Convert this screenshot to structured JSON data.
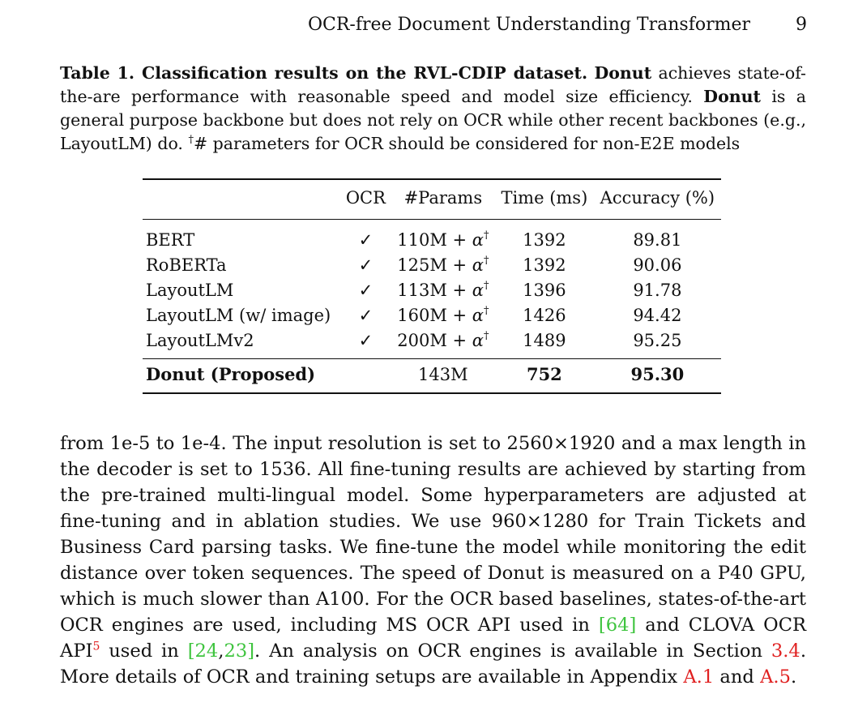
{
  "header": {
    "running_title": "OCR-free Document Understanding Transformer",
    "page_number": "9"
  },
  "caption": {
    "label": "Table 1. Classification results on the RVL-CDIP dataset.",
    "bold_name_1": "Donut",
    "text_1": "achieves state-of-the-are performance with reasonable speed and model size efficiency.",
    "bold_name_2": "Donut",
    "text_2": "is a general purpose backbone but does not rely on OCR while other recent backbones (e.g., LayoutLM) do.",
    "dagger": "†",
    "text_3": "# parameters for OCR should be considered for non-E2E models"
  },
  "table": {
    "headers": [
      "",
      "OCR",
      "#Params",
      "Time (ms)",
      "Accuracy (%)"
    ],
    "rows": [
      {
        "name": "BERT",
        "ocr": "✓",
        "params": "110M + ",
        "alpha": "α",
        "dagger": "†",
        "time": "1392",
        "accuracy": "89.81"
      },
      {
        "name": "RoBERTa",
        "ocr": "✓",
        "params": "125M + ",
        "alpha": "α",
        "dagger": "†",
        "time": "1392",
        "accuracy": "90.06"
      },
      {
        "name": "LayoutLM",
        "ocr": "✓",
        "params": "113M + ",
        "alpha": "α",
        "dagger": "†",
        "time": "1396",
        "accuracy": "91.78"
      },
      {
        "name": "LayoutLM (w/ image)",
        "ocr": "✓",
        "params": "160M + ",
        "alpha": "α",
        "dagger": "†",
        "time": "1426",
        "accuracy": "94.42"
      },
      {
        "name": "LayoutLMv2",
        "ocr": "✓",
        "params": "200M + ",
        "alpha": "α",
        "dagger": "†",
        "time": "1489",
        "accuracy": "95.25"
      }
    ],
    "proposed": {
      "name": "Donut (Proposed)",
      "ocr": "",
      "params": "143M",
      "time": "752",
      "accuracy": "95.30"
    }
  },
  "body": {
    "t1": "from 1e-5 to 1e-4. The input resolution is set to 2560×1920 and a max length in the decoder is set to 1536. All fine-tuning results are achieved by starting from the pre-trained multi-lingual model. Some hyperparameters are adjusted at fine-tuning and in ablation studies. We use 960×1280 for Train Tickets and Business Card parsing tasks. We fine-tune the model while monitoring the edit distance over token sequences. The speed of Donut is measured on a P40 GPU, which is much slower than A100. For the OCR based baselines, states-of-the-art OCR engines are used, including MS OCR API used in ",
    "open_bracket_1": "[",
    "cite_64": "64",
    "close_bracket_1": "]",
    "t2": " and CLOVA OCR API",
    "footnote_5": "5",
    "t3": " used in ",
    "open_bracket_2": "[",
    "cite_24": "24",
    "comma": ",",
    "cite_23": "23",
    "close_bracket_2": "]",
    "t4": ". An analysis on OCR engines is available in Section ",
    "section_ref": "3.4",
    "t5": ". More details of OCR and training setups are available in Appendix ",
    "appendix_a1": "A.1",
    "t6": " and ",
    "appendix_a5": "A.5",
    "t7": "."
  },
  "colors": {
    "citation": "#3ec43e",
    "crossref": "#e02020",
    "text": "#111111"
  }
}
